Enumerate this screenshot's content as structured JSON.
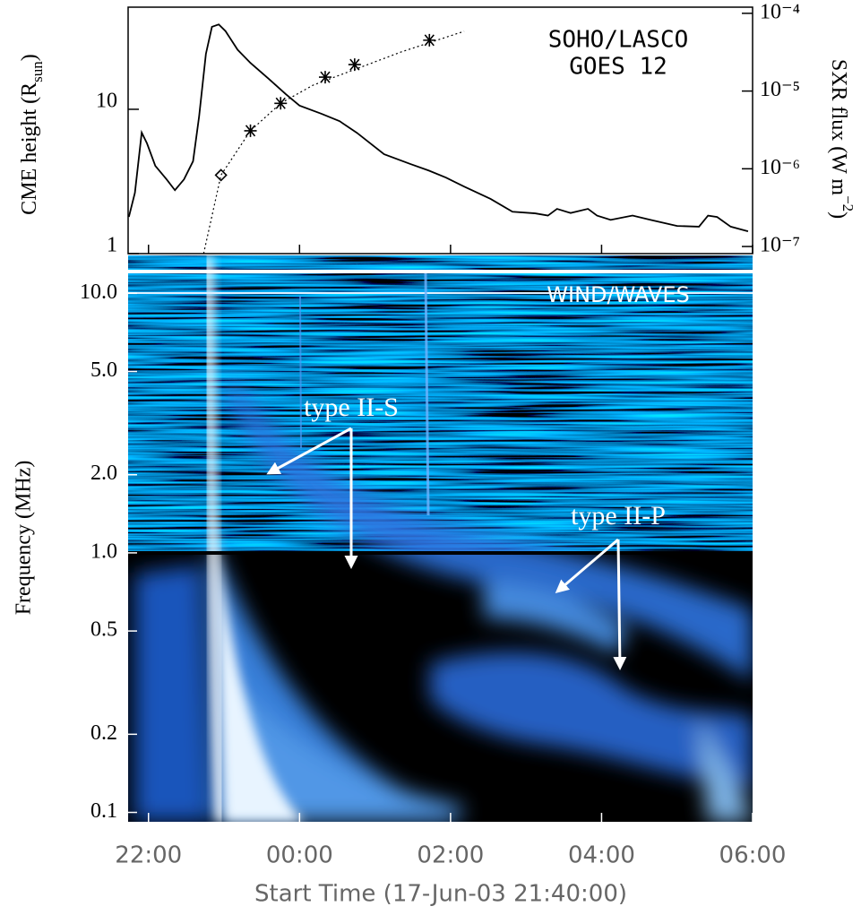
{
  "chart_data": [
    {
      "type": "line",
      "annotations": [
        "SOHO/LASCO",
        "GOES 12"
      ],
      "ylabel": [
        "CME height (R",
        "sun",
        ")"
      ],
      "y2label": [
        "SXR flux (W m",
        "−2",
        ")"
      ],
      "xlim": [
        21.73,
        30
      ],
      "ylim": [
        1,
        51
      ],
      "log_y": true,
      "yticks": [
        1,
        10
      ],
      "y2lim": [
        8.1e-08,
        0.00012
      ],
      "log_y2": true,
      "y2ticks": [
        {
          "value": 1e-07,
          "label": "10⁻⁷"
        },
        {
          "value": 1e-06,
          "label": "10⁻⁶"
        },
        {
          "value": 1e-05,
          "label": "10⁻⁵"
        },
        {
          "value": 0.0001,
          "label": "10⁻⁴"
        }
      ],
      "series": [
        {
          "marker": "diamond",
          "color": "#000000",
          "x": [
            22.96
          ],
          "values": [
            3.5
          ]
        },
        {
          "marker": "asterisk",
          "color": "#000000",
          "x": [
            23.35,
            23.75,
            24.34,
            24.73,
            25.72
          ],
          "values": [
            7.1,
            11.0,
            16.7,
            20.4,
            30.1
          ]
        },
        {
          "style": "dotted",
          "color": "#000000",
          "x": [
            22.73,
            22.96,
            23.35,
            23.75,
            24.18,
            25.35,
            26.18
          ],
          "values": [
            1.0,
            3.5,
            7.1,
            11.0,
            14.7,
            25.0,
            34.7
          ]
        },
        {
          "style": "solid",
          "axis": "y2",
          "color": "#000000",
          "x": [
            21.74,
            21.82,
            21.91,
            21.98,
            22.09,
            22.24,
            22.35,
            22.47,
            22.59,
            22.67,
            22.76,
            22.84,
            22.93,
            23.02,
            23.18,
            23.35,
            23.59,
            23.82,
            24.0,
            24.29,
            24.53,
            24.76,
            25.12,
            25.47,
            25.71,
            25.94,
            26.18,
            26.53,
            26.82,
            27.12,
            27.29,
            27.41,
            27.59,
            27.82,
            27.94,
            28.12,
            28.41,
            28.65,
            29.0,
            29.29,
            29.41,
            29.53,
            29.71,
            29.94
          ],
          "values": [
            2.4e-07,
            4.92e-07,
            2.92e-06,
            2.12e-06,
            1.09e-06,
            7.3e-07,
            5.3e-07,
            7.3e-07,
            1.25e-06,
            4.7e-06,
            3e-05,
            6.7e-05,
            7.2e-05,
            5.9e-05,
            3.4e-05,
            2.3e-05,
            1.44e-05,
            9.1e-06,
            6.5e-06,
            5.1e-06,
            4.1e-06,
            2.9e-06,
            1.54e-06,
            1.15e-06,
            9.5e-07,
            7.7e-07,
            5.9e-07,
            4.1e-07,
            2.8e-07,
            2.67e-07,
            2.5e-07,
            3.05e-07,
            2.7e-07,
            3.05e-07,
            2.5e-07,
            2.2e-07,
            2.5e-07,
            2.2e-07,
            1.84e-07,
            1.8e-07,
            2.5e-07,
            2.4e-07,
            1.8e-07,
            1.57e-07
          ]
        }
      ]
    },
    {
      "type": "spectrogram",
      "annotations": [
        "WIND/WAVES",
        "type II-S",
        "type II-P"
      ],
      "ylabel": "Frequency (MHz)",
      "xlabel": "Start Time (17-Jun-03 21:40:00)",
      "xlim": [
        21.73,
        30
      ],
      "xticks": [
        {
          "value": 22,
          "label": "22:00"
        },
        {
          "value": 24,
          "label": "00:00"
        },
        {
          "value": 26,
          "label": "02:00"
        },
        {
          "value": 28,
          "label": "04:00"
        },
        {
          "value": 30,
          "label": "06:00"
        }
      ],
      "ylim": [
        0.092,
        14
      ],
      "log_y": true,
      "yticks": [
        {
          "value": 10,
          "label": "10.0"
        },
        {
          "value": 5,
          "label": "5.0"
        },
        {
          "value": 2,
          "label": "2.0"
        },
        {
          "value": 1,
          "label": "1.0"
        },
        0.5,
        0.2,
        0.1
      ]
    }
  ]
}
